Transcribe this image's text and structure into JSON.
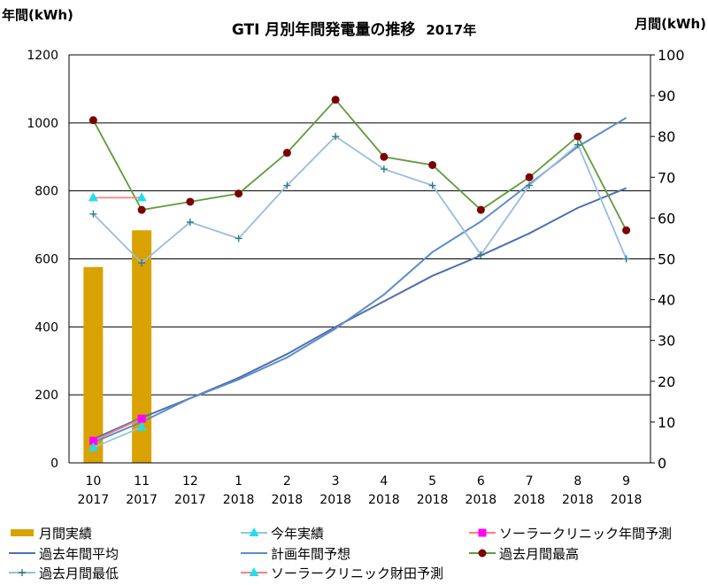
{
  "chart_data": {
    "type": "bar+line",
    "title": "GTI 月別年間発電量の推移",
    "subtitle": "2017年",
    "ylabel_left": "年間(kWh)",
    "ylabel_right": "月間(kWh)",
    "ylim_left": [
      0,
      1200
    ],
    "ylim_right": [
      0,
      100
    ],
    "yticks_left": [
      "0",
      "200",
      "400",
      "600",
      "800",
      "1000",
      "1200"
    ],
    "yticks_right": [
      "0",
      "10",
      "20",
      "30",
      "40",
      "50",
      "60",
      "70",
      "80",
      "90",
      "100"
    ],
    "grid": true,
    "categories": [
      {
        "month": "10",
        "year": "2017"
      },
      {
        "month": "11",
        "year": "2017"
      },
      {
        "month": "12",
        "year": "2017"
      },
      {
        "month": "1",
        "year": "2018"
      },
      {
        "month": "2",
        "year": "2018"
      },
      {
        "month": "3",
        "year": "2018"
      },
      {
        "month": "4",
        "year": "2018"
      },
      {
        "month": "5",
        "year": "2018"
      },
      {
        "month": "6",
        "year": "2018"
      },
      {
        "month": "7",
        "year": "2018"
      },
      {
        "month": "8",
        "year": "2018"
      },
      {
        "month": "9",
        "year": "2018"
      }
    ],
    "series": [
      {
        "name": "月間実績",
        "kind": "bar",
        "axis": "right",
        "color": "#DAA200",
        "values": [
          48,
          57,
          null,
          null,
          null,
          null,
          null,
          null,
          null,
          null,
          null,
          null
        ]
      },
      {
        "name": "今年実績",
        "kind": "line",
        "axis": "left",
        "color": "#8CC8E6",
        "marker": "triangle",
        "marker_color": "#22DDEE",
        "values": [
          45,
          105,
          null,
          null,
          null,
          null,
          null,
          null,
          null,
          null,
          null,
          null
        ]
      },
      {
        "name": "ソーラークリニック年間予測",
        "kind": "line",
        "axis": "left",
        "color": "#FF7F7F",
        "marker": "square",
        "marker_color": "#FF00FF",
        "values": [
          65,
          130,
          null,
          null,
          null,
          null,
          null,
          null,
          null,
          null,
          null,
          null
        ]
      },
      {
        "name": "過去年間平均",
        "kind": "line",
        "axis": "left",
        "color": "#4F6FB0",
        "marker": "none",
        "values": [
          70,
          133,
          190,
          250,
          320,
          400,
          475,
          550,
          610,
          675,
          750,
          808
        ]
      },
      {
        "name": "計画年間予想",
        "kind": "line",
        "axis": "left",
        "color": "#5B8DC8",
        "marker": "none",
        "values": [
          60,
          120,
          190,
          245,
          310,
          395,
          495,
          620,
          710,
          820,
          930,
          1015
        ]
      },
      {
        "name": "過去月間最高",
        "kind": "line",
        "axis": "right",
        "color": "#5F9B3B",
        "marker": "circle",
        "marker_color": "#7B0000",
        "values": [
          84,
          62,
          64,
          66,
          76,
          89,
          75,
          73,
          62,
          70,
          80,
          57
        ]
      },
      {
        "name": "過去月間最低",
        "kind": "line",
        "axis": "right",
        "color": "#99BCE0",
        "marker": "plus",
        "marker_color": "#2E7C84",
        "values": [
          61,
          49,
          59,
          55,
          68,
          80,
          72,
          68,
          51,
          68,
          78,
          50
        ]
      },
      {
        "name": "ソーラークリニック財田予測",
        "kind": "line",
        "axis": "right",
        "color": "#FF7F7F",
        "marker": "triangle",
        "marker_color": "#22DDEE",
        "values": [
          65,
          65,
          null,
          null,
          null,
          null,
          null,
          null,
          null,
          null,
          null,
          null
        ]
      }
    ],
    "legend": {
      "placement": "bottom",
      "rows": [
        [
          "月間実績",
          "今年実績",
          "ソーラークリニック年間予測"
        ],
        [
          "過去年間平均",
          "計画年間予想",
          "過去月間最高"
        ],
        [
          "過去月間最低",
          "ソーラークリニック財田予測"
        ]
      ]
    }
  }
}
